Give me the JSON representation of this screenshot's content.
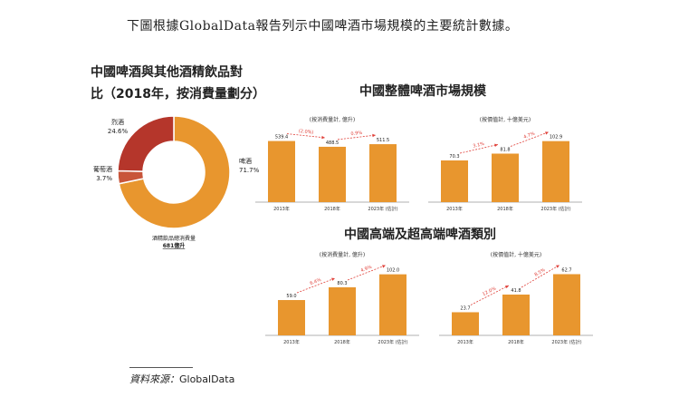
{
  "intro": "下圖根據GlobalData報告列示中國啤酒市場規模的主要統計數據。",
  "pie_title_line1": "中國啤酒與其他酒精飲品對",
  "pie_title_line2": "比（2018年，按消費量劃分）",
  "section1_title": "中國整體啤酒市場規模",
  "section2_title": "中國高端及超高端啤酒類別",
  "source_label": "資料來源：",
  "source_value": "GlobalData",
  "colors": {
    "orange": "#E8962E",
    "red": "#B5362B",
    "darkred": "#C8553A",
    "growth": "#E0413A",
    "axis": "#999999"
  },
  "chart_data": [
    {
      "type": "pie",
      "slices": [
        {
          "name": "啤酒",
          "value": 71.7,
          "label": "71.7%",
          "color": "#E8962E"
        },
        {
          "name": "葡萄酒",
          "value": 3.7,
          "label": "3.7%",
          "color": "#C8553A"
        },
        {
          "name": "烈酒",
          "value": 24.6,
          "label": "24.6%",
          "color": "#B5362B"
        }
      ],
      "footer_line1": "酒精飲品總消費量",
      "footer_line2": "681億升"
    },
    {
      "type": "bar",
      "unit": "(按消費量計, 億升)",
      "categories": [
        "2013年",
        "2018年",
        "2023年 (估計)"
      ],
      "values": [
        539.4,
        488.5,
        511.5
      ],
      "value_labels": [
        "539.4",
        "488.5",
        "511.5"
      ],
      "growth": [
        "(2.0%)",
        "0.9%"
      ],
      "ylim": [
        0,
        560
      ]
    },
    {
      "type": "bar",
      "unit": "(按價值計, 十億美元)",
      "categories": [
        "2013年",
        "2018年",
        "2023年 (估計)"
      ],
      "values": [
        70.3,
        81.8,
        102.9
      ],
      "value_labels": [
        "70.3",
        "81.8",
        "102.9"
      ],
      "growth": [
        "3.1%",
        "4.7%"
      ],
      "ylim": [
        0,
        107
      ]
    },
    {
      "type": "bar",
      "unit": "(按消費量計, 億升)",
      "categories": [
        "2013年",
        "2018年",
        "2023年 (估計)"
      ],
      "values": [
        59.0,
        80.3,
        102.0
      ],
      "value_labels": [
        "59.0",
        "80.3",
        "102.0"
      ],
      "growth": [
        "6.4%",
        "4.9%"
      ],
      "ylim": [
        0,
        106
      ]
    },
    {
      "type": "bar",
      "unit": "(按價值計, 十億美元)",
      "categories": [
        "2013年",
        "2018年",
        "2023年 (估計)"
      ],
      "values": [
        23.7,
        41.8,
        62.7
      ],
      "value_labels": [
        "23.7",
        "41.8",
        "62.7"
      ],
      "growth": [
        "12.0%",
        "8.5%"
      ],
      "ylim": [
        0,
        65
      ]
    }
  ]
}
